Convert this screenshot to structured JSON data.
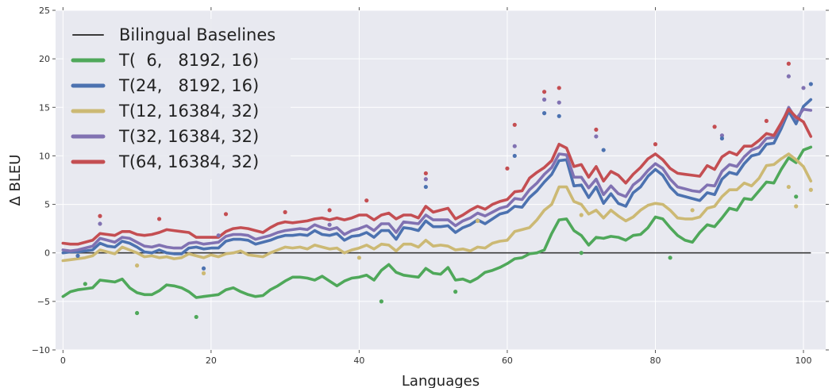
{
  "chart_data": {
    "type": "line",
    "xlabel": "Languages",
    "ylabel": "Δ BLEU",
    "xlim": [
      -1,
      103
    ],
    "ylim": [
      -10,
      25
    ],
    "xticks": [
      0,
      20,
      40,
      60,
      80,
      100
    ],
    "yticks": [
      -10,
      -5,
      0,
      5,
      10,
      15,
      20,
      25
    ],
    "xtick_labels": [
      "0",
      "20",
      "40",
      "60",
      "80",
      "100"
    ],
    "ytick_labels": [
      "−10",
      "−5",
      "0",
      "5",
      "10",
      "15",
      "20",
      "25"
    ],
    "grid": true,
    "legend_position": "top-left",
    "background": "#e8e9f0",
    "baseline": {
      "name": "Bilingual Baselines",
      "y": 0,
      "color": "#3a3a3a"
    },
    "x_start": 0,
    "series": [
      {
        "name": "T(  6,   8192, 16)",
        "color": "#4fa85a",
        "values": [
          -4.5,
          -4.0,
          -3.8,
          -3.7,
          -3.6,
          -2.8,
          -2.9,
          -3.0,
          -2.7,
          -3.6,
          -4.1,
          -4.3,
          -4.3,
          -3.9,
          -3.3,
          -3.4,
          -3.6,
          -4.0,
          -4.6,
          -4.5,
          -4.4,
          -4.3,
          -3.8,
          -3.6,
          -4.0,
          -4.3,
          -4.5,
          -4.4,
          -3.8,
          -3.4,
          -2.9,
          -2.5,
          -2.5,
          -2.6,
          -2.8,
          -2.4,
          -2.9,
          -3.4,
          -2.9,
          -2.6,
          -2.5,
          -2.3,
          -2.8,
          -1.8,
          -1.2,
          -2.0,
          -2.3,
          -2.4,
          -2.5,
          -1.6,
          -2.1,
          -2.2,
          -1.5,
          -2.8,
          -2.7,
          -3.0,
          -2.6,
          -2.0,
          -1.8,
          -1.5,
          -1.1,
          -0.6,
          -0.5,
          -0.1,
          0.0,
          0.3,
          2.0,
          3.4,
          3.5,
          2.3,
          1.8,
          0.8,
          1.6,
          1.5,
          1.7,
          1.6,
          1.3,
          1.8,
          1.9,
          2.6,
          3.7,
          3.5,
          2.6,
          1.8,
          1.3,
          1.1,
          2.1,
          2.9,
          2.7,
          3.6,
          4.6,
          4.4,
          5.6,
          5.5,
          6.4,
          7.3,
          7.2,
          8.6,
          9.8,
          9.3,
          10.6,
          10.9
        ]
      },
      {
        "name": "T(24,   8192, 16)",
        "color": "#4c72b0",
        "values": [
          0.0,
          0.1,
          0.1,
          0.2,
          0.3,
          1.0,
          0.7,
          0.6,
          1.2,
          1.0,
          0.6,
          0.1,
          0.0,
          0.3,
          0.0,
          -0.1,
          -0.1,
          0.5,
          0.6,
          0.4,
          0.5,
          0.5,
          1.2,
          1.4,
          1.4,
          1.3,
          0.9,
          1.1,
          1.3,
          1.6,
          1.8,
          1.8,
          1.9,
          1.8,
          2.3,
          1.9,
          1.8,
          2.0,
          1.3,
          1.7,
          1.8,
          2.1,
          1.6,
          2.3,
          2.3,
          1.4,
          2.6,
          2.5,
          2.3,
          3.3,
          2.7,
          2.7,
          2.8,
          2.1,
          2.6,
          2.9,
          3.4,
          3.0,
          3.5,
          4.0,
          4.2,
          4.8,
          4.7,
          5.7,
          6.4,
          7.3,
          8.1,
          9.5,
          9.6,
          6.9,
          7.0,
          5.7,
          6.8,
          5.1,
          6.1,
          5.1,
          4.8,
          6.2,
          6.8,
          7.9,
          8.6,
          8.0,
          6.8,
          6.0,
          5.8,
          5.6,
          5.4,
          6.2,
          6.0,
          7.6,
          8.3,
          8.1,
          9.2,
          10.0,
          10.2,
          11.2,
          11.3,
          12.8,
          14.6,
          13.3,
          15.1,
          15.8
        ]
      },
      {
        "name": "T(12, 16384, 32)",
        "color": "#ccb974",
        "values": [
          -0.8,
          -0.7,
          -0.6,
          -0.5,
          -0.3,
          0.3,
          0.1,
          -0.1,
          0.6,
          0.3,
          0.0,
          -0.4,
          -0.3,
          -0.5,
          -0.4,
          -0.6,
          -0.5,
          -0.1,
          -0.3,
          -0.5,
          -0.2,
          -0.4,
          -0.1,
          0.0,
          0.2,
          -0.2,
          -0.3,
          -0.4,
          0.0,
          0.3,
          0.6,
          0.5,
          0.6,
          0.4,
          0.8,
          0.6,
          0.4,
          0.5,
          0.0,
          0.3,
          0.5,
          0.8,
          0.4,
          0.9,
          0.8,
          0.2,
          0.9,
          0.9,
          0.6,
          1.3,
          0.7,
          0.8,
          0.7,
          0.3,
          0.4,
          0.2,
          0.6,
          0.5,
          1.0,
          1.2,
          1.3,
          2.2,
          2.4,
          2.6,
          3.4,
          4.4,
          5.0,
          6.8,
          6.8,
          5.3,
          5.0,
          4.0,
          4.4,
          3.6,
          4.4,
          3.8,
          3.3,
          3.7,
          4.4,
          4.9,
          5.1,
          5.0,
          4.4,
          3.6,
          3.5,
          3.5,
          3.7,
          4.6,
          4.8,
          5.8,
          6.5,
          6.5,
          7.2,
          6.9,
          7.7,
          9.0,
          9.1,
          9.7,
          10.2,
          9.6,
          8.9,
          7.4
        ]
      },
      {
        "name": "T(32, 16384, 32)",
        "color": "#8172b2",
        "values": [
          0.3,
          0.2,
          0.3,
          0.5,
          0.7,
          1.5,
          1.3,
          1.1,
          1.6,
          1.5,
          1.1,
          0.7,
          0.6,
          0.8,
          0.6,
          0.5,
          0.5,
          1.0,
          1.1,
          0.9,
          1.0,
          1.1,
          1.7,
          1.9,
          1.9,
          1.8,
          1.4,
          1.6,
          1.8,
          2.1,
          2.3,
          2.4,
          2.5,
          2.4,
          2.9,
          2.6,
          2.4,
          2.6,
          1.9,
          2.3,
          2.5,
          2.8,
          2.3,
          3.0,
          3.0,
          2.1,
          3.2,
          3.1,
          3.0,
          3.9,
          3.4,
          3.4,
          3.4,
          2.8,
          3.3,
          3.6,
          4.1,
          3.8,
          4.2,
          4.6,
          4.8,
          5.6,
          5.5,
          6.5,
          7.2,
          8.1,
          8.8,
          10.2,
          10.1,
          7.8,
          7.8,
          6.7,
          7.6,
          6.0,
          6.9,
          6.1,
          5.8,
          7.0,
          7.6,
          8.5,
          9.2,
          8.7,
          7.6,
          6.8,
          6.6,
          6.4,
          6.3,
          7.0,
          6.9,
          8.4,
          9.1,
          8.9,
          9.9,
          10.6,
          10.9,
          11.8,
          11.9,
          13.2,
          15.0,
          13.8,
          14.8,
          14.7
        ]
      },
      {
        "name": "T(64, 16384, 32)",
        "color": "#c44e52",
        "values": [
          1.0,
          0.9,
          0.9,
          1.1,
          1.3,
          2.0,
          1.9,
          1.8,
          2.2,
          2.2,
          1.9,
          1.8,
          1.9,
          2.1,
          2.4,
          2.3,
          2.2,
          2.1,
          1.6,
          1.6,
          1.6,
          1.6,
          2.2,
          2.5,
          2.6,
          2.5,
          2.3,
          2.1,
          2.6,
          3.0,
          3.2,
          3.1,
          3.2,
          3.3,
          3.5,
          3.6,
          3.4,
          3.6,
          3.4,
          3.6,
          3.9,
          3.9,
          3.4,
          3.9,
          4.1,
          3.5,
          3.9,
          3.9,
          3.6,
          4.8,
          4.2,
          4.4,
          4.6,
          3.5,
          3.9,
          4.4,
          4.8,
          4.5,
          5.0,
          5.3,
          5.5,
          6.3,
          6.4,
          7.7,
          8.3,
          8.8,
          9.5,
          11.2,
          10.8,
          8.9,
          9.1,
          7.8,
          8.9,
          7.4,
          8.4,
          8.0,
          7.2,
          8.1,
          8.8,
          9.7,
          10.2,
          9.6,
          8.7,
          8.2,
          8.1,
          8.0,
          7.9,
          9.0,
          8.6,
          9.9,
          10.4,
          10.1,
          11.0,
          11.0,
          11.6,
          12.3,
          12.1,
          13.4,
          14.8,
          14.0,
          13.5,
          12.0
        ]
      }
    ],
    "scatter_points": [
      {
        "color": "#c44e52",
        "x": [
          5,
          13,
          22,
          30,
          36,
          41,
          49,
          60,
          61,
          65,
          67,
          72,
          80,
          88,
          95,
          98
        ],
        "y": [
          3.8,
          3.5,
          4.0,
          4.2,
          4.4,
          5.4,
          8.2,
          8.7,
          13.2,
          16.6,
          17.0,
          12.7,
          11.2,
          13.0,
          13.6,
          19.5
        ]
      },
      {
        "color": "#8172b2",
        "x": [
          5,
          21,
          36,
          49,
          61,
          65,
          67,
          72,
          89,
          98,
          100
        ],
        "y": [
          3.0,
          1.8,
          2.9,
          7.6,
          11.0,
          15.8,
          15.5,
          12.0,
          12.1,
          18.2,
          17.0
        ]
      },
      {
        "color": "#4c72b0",
        "x": [
          2,
          19,
          49,
          61,
          65,
          67,
          73,
          89,
          101
        ],
        "y": [
          -0.3,
          -1.6,
          6.8,
          10.0,
          14.4,
          14.1,
          10.6,
          11.8,
          17.4
        ]
      },
      {
        "color": "#ccb974",
        "x": [
          10,
          19,
          40,
          56,
          70,
          85,
          98,
          99,
          101
        ],
        "y": [
          -1.3,
          -2.1,
          -0.5,
          3.3,
          3.9,
          4.4,
          6.8,
          4.8,
          6.5
        ]
      },
      {
        "color": "#4fa85a",
        "x": [
          3,
          10,
          18,
          43,
          53,
          70,
          82,
          99
        ],
        "y": [
          -3.2,
          -6.2,
          -6.6,
          -5.0,
          -4.0,
          0.0,
          -0.5,
          5.8
        ]
      }
    ]
  }
}
